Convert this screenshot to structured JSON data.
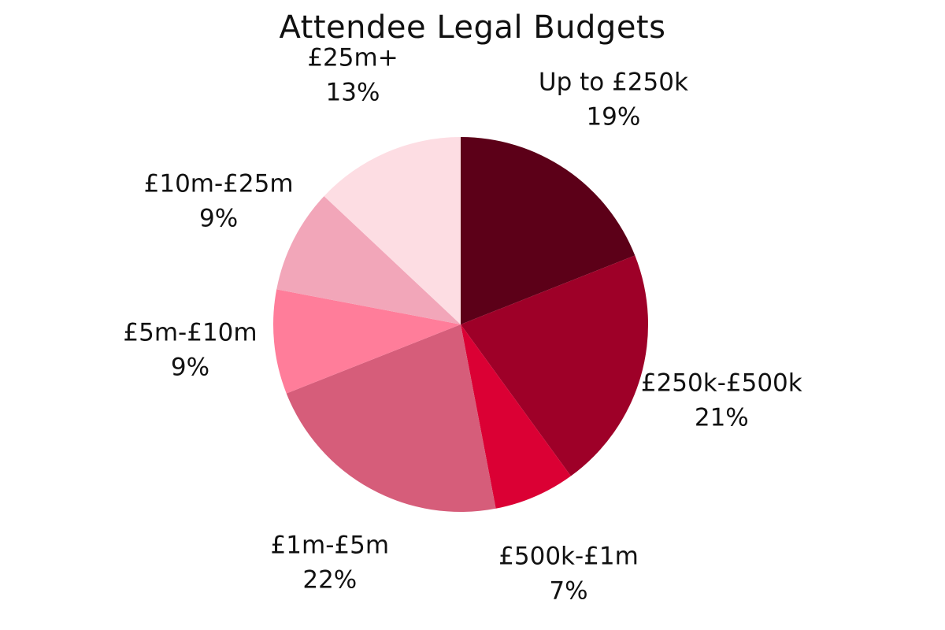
{
  "chart_data": {
    "type": "pie",
    "title": "Attendee Legal Budgets",
    "slices": [
      {
        "label": "Up to £250k",
        "value": 19,
        "percent_label": "19%",
        "color": "#5c0018"
      },
      {
        "label": "£250k-£500k",
        "value": 21,
        "percent_label": "21%",
        "color": "#9e0028"
      },
      {
        "label": "£500k-£1m",
        "value": 7,
        "percent_label": "7%",
        "color": "#db0034"
      },
      {
        "label": "£1m-£5m",
        "value": 22,
        "percent_label": "22%",
        "color": "#d65d7a"
      },
      {
        "label": "£5m-£10m",
        "value": 9,
        "percent_label": "9%",
        "color": "#ff7d9a"
      },
      {
        "label": "£10m-£25m",
        "value": 9,
        "percent_label": "9%",
        "color": "#f2a6b9"
      },
      {
        "label": "£25m+",
        "value": 13,
        "percent_label": "13%",
        "color": "#fddde3"
      }
    ],
    "start_angle_deg": 0,
    "direction": "clockwise",
    "legend": "none",
    "label_placement": "outside"
  }
}
